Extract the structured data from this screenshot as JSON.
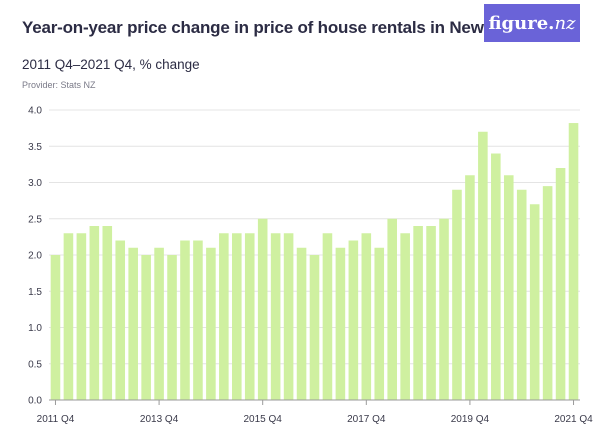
{
  "header": {
    "title": "Year-on-year price change in price of house rentals in New Zealand",
    "subtitle": "2011 Q4–2021 Q4, % change",
    "provider": "Provider: Stats NZ"
  },
  "logo": {
    "text_main": "figure.",
    "text_accent": "nz"
  },
  "colors": {
    "bar": "#cff0a0",
    "grid": "#e4e4e4",
    "axis": "#9a9a9a",
    "logo_bg": "#6a63d8"
  },
  "chart_data": {
    "type": "bar",
    "title": "Year-on-year price change in price of house rentals in New Zealand",
    "ylim": [
      0,
      4.0
    ],
    "y_ticks": [
      "0.0",
      "0.5",
      "1.0",
      "1.5",
      "2.0",
      "2.5",
      "3.0",
      "3.5",
      "4.0"
    ],
    "x_tick_labels": [
      {
        "index": 0,
        "label": "2011 Q4"
      },
      {
        "index": 8,
        "label": "2013 Q4"
      },
      {
        "index": 16,
        "label": "2015 Q4"
      },
      {
        "index": 24,
        "label": "2017 Q4"
      },
      {
        "index": 32,
        "label": "2019 Q4"
      },
      {
        "index": 40,
        "label": "2021 Q4"
      }
    ],
    "categories": [
      "2011 Q4",
      "2012 Q1",
      "2012 Q2",
      "2012 Q3",
      "2012 Q4",
      "2013 Q1",
      "2013 Q2",
      "2013 Q3",
      "2013 Q4",
      "2014 Q1",
      "2014 Q2",
      "2014 Q3",
      "2014 Q4",
      "2015 Q1",
      "2015 Q2",
      "2015 Q3",
      "2015 Q4",
      "2016 Q1",
      "2016 Q2",
      "2016 Q3",
      "2016 Q4",
      "2017 Q1",
      "2017 Q2",
      "2017 Q3",
      "2017 Q4",
      "2018 Q1",
      "2018 Q2",
      "2018 Q3",
      "2018 Q4",
      "2019 Q1",
      "2019 Q2",
      "2019 Q3",
      "2019 Q4",
      "2020 Q1",
      "2020 Q2",
      "2020 Q3",
      "2020 Q4",
      "2021 Q1",
      "2021 Q2",
      "2021 Q3",
      "2021 Q4"
    ],
    "values": [
      2.0,
      2.3,
      2.3,
      2.4,
      2.4,
      2.2,
      2.1,
      2.0,
      2.1,
      2.0,
      2.2,
      2.2,
      2.1,
      2.3,
      2.3,
      2.3,
      2.5,
      2.3,
      2.3,
      2.1,
      2.0,
      2.3,
      2.1,
      2.2,
      2.3,
      2.1,
      2.5,
      2.3,
      2.4,
      2.4,
      2.5,
      2.9,
      3.1,
      3.7,
      3.4,
      3.1,
      2.9,
      2.7,
      2.95,
      3.2,
      3.82
    ],
    "grid": true
  }
}
